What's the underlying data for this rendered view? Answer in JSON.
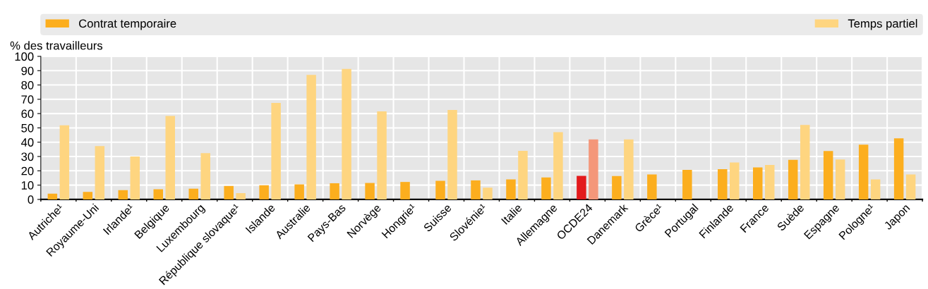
{
  "chart_data": {
    "type": "bar",
    "ylabel": "% des travailleurs",
    "categories": [
      "Autriche¹",
      "Royaume-Uni",
      "Irlande¹",
      "Belgique",
      "Luxembourg",
      "République slovaque¹",
      "Islande",
      "Australie",
      "Pays-Bas",
      "Norvège",
      "Hongrie¹",
      "Suisse",
      "Slovénie¹",
      "Italie",
      "Allemagne",
      "OCDE24",
      "Danemark",
      "Grèce¹",
      "Portugal",
      "Finlande",
      "France",
      "Suède",
      "Espagne",
      "Pologne¹",
      "Japon"
    ],
    "series": [
      {
        "name": "Contrat temporaire",
        "color": "#fcae1e",
        "colors": [
          "#fcae1e",
          "#fcae1e",
          "#fcae1e",
          "#fcae1e",
          "#fcae1e",
          "#fcae1e",
          "#fcae1e",
          "#fcae1e",
          "#fcae1e",
          "#fcae1e",
          "#fcae1e",
          "#fcae1e",
          "#fcae1e",
          "#fcae1e",
          "#fcae1e",
          "#e31a1c",
          "#fcae1e",
          "#fcae1e",
          "#fcae1e",
          "#fcae1e",
          "#fcae1e",
          "#fcae1e",
          "#fcae1e",
          "#fcae1e",
          "#fcae1e"
        ],
        "values": [
          4,
          5.2,
          6.5,
          7.1,
          7.5,
          9.4,
          9.9,
          10.5,
          11.3,
          11.5,
          12.2,
          13,
          13.3,
          14,
          15.4,
          16.5,
          16.3,
          17.5,
          20.7,
          21.1,
          22.4,
          27.7,
          33.8,
          38.3,
          42.7
        ]
      },
      {
        "name": "Temps partiel",
        "color": "#fed580",
        "colors": [
          "#fed580",
          "#fed580",
          "#fed580",
          "#fed580",
          "#fed580",
          "#fed580",
          "#fed580",
          "#fed580",
          "#fed580",
          "#fed580",
          "#fed580",
          "#fed580",
          "#fed580",
          "#fed580",
          "#fed580",
          "#f4977a",
          "#fed580",
          "#fed580",
          "#fed580",
          "#fed580",
          "#fed580",
          "#fed580",
          "#fed580",
          "#fed580",
          "#fed580"
        ],
        "values": [
          51.8,
          37.3,
          30,
          58.3,
          32.3,
          4.4,
          67.5,
          87,
          91.2,
          61.6,
          null,
          62.5,
          8.2,
          34,
          47,
          41.9,
          42,
          null,
          null,
          25.8,
          24.1,
          52,
          27.9,
          14,
          17.5
        ]
      }
    ],
    "ylim": [
      0,
      100
    ],
    "yticks": [
      0,
      10,
      20,
      30,
      40,
      50,
      60,
      70,
      80,
      90,
      100
    ],
    "grid": true,
    "legend": "top"
  }
}
